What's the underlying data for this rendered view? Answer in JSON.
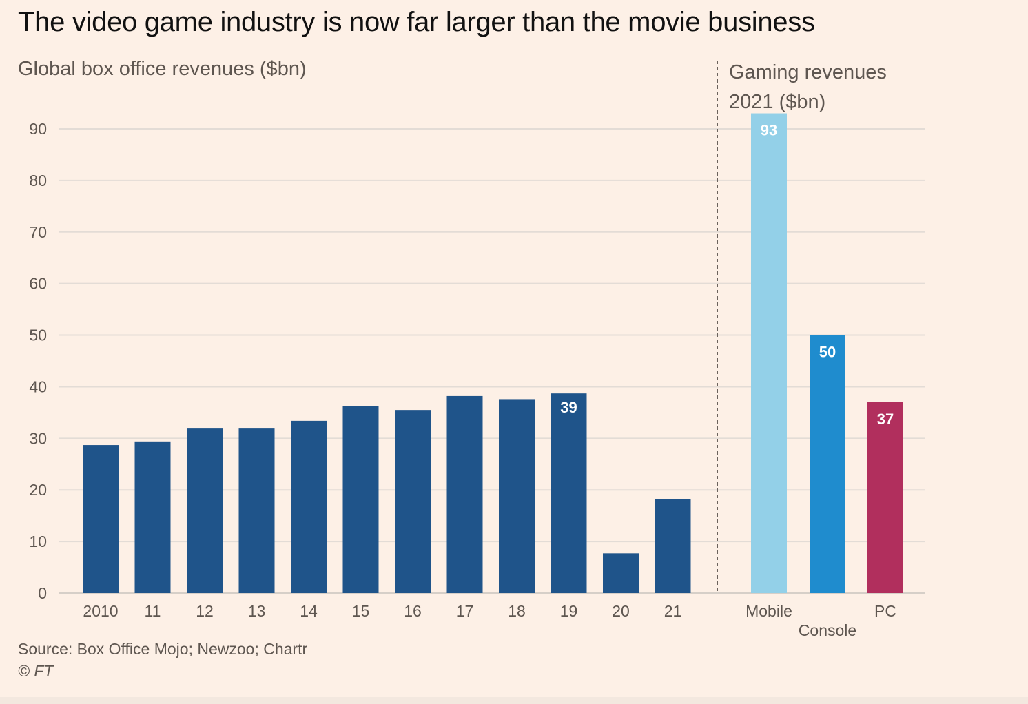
{
  "chart_data": [
    {
      "type": "bar",
      "title": "The video game industry is now far larger than the movie business",
      "subtitle": "Global box office revenues ($bn)",
      "xlabel": "",
      "ylabel": "",
      "categories": [
        "2010",
        "11",
        "12",
        "13",
        "14",
        "15",
        "16",
        "17",
        "18",
        "19",
        "20",
        "21"
      ],
      "values": [
        28.7,
        29.4,
        31.9,
        31.9,
        33.4,
        36.2,
        35.5,
        38.2,
        37.6,
        38.7,
        7.7,
        18.2
      ],
      "data_labels": [
        null,
        null,
        null,
        null,
        null,
        null,
        null,
        null,
        null,
        "39",
        null,
        null
      ],
      "ylim": [
        0,
        90
      ],
      "yticks": [
        0,
        10,
        20,
        30,
        40,
        50,
        60,
        70,
        80,
        90
      ],
      "grid": true,
      "color": "#1f548a"
    },
    {
      "type": "bar",
      "subtitle": "Gaming revenues 2021 ($bn)",
      "categories": [
        "Mobile",
        "Console",
        "PC"
      ],
      "values": [
        93,
        50,
        37
      ],
      "data_labels": [
        "93",
        "50",
        "37"
      ],
      "colors": [
        "#93d0e8",
        "#1f8cce",
        "#b12f5d"
      ],
      "ylim": [
        0,
        90
      ],
      "grid": true
    }
  ],
  "header": {
    "title": "The video game industry is now far larger than the movie business",
    "left_subtitle": "Global box office revenues ($bn)",
    "right_subtitle_line1": "Gaming revenues",
    "right_subtitle_line2": "2021 ($bn)"
  },
  "footer": {
    "source": "Source: Box Office Mojo; Newzoo; Chartr",
    "copyright": "© FT"
  }
}
